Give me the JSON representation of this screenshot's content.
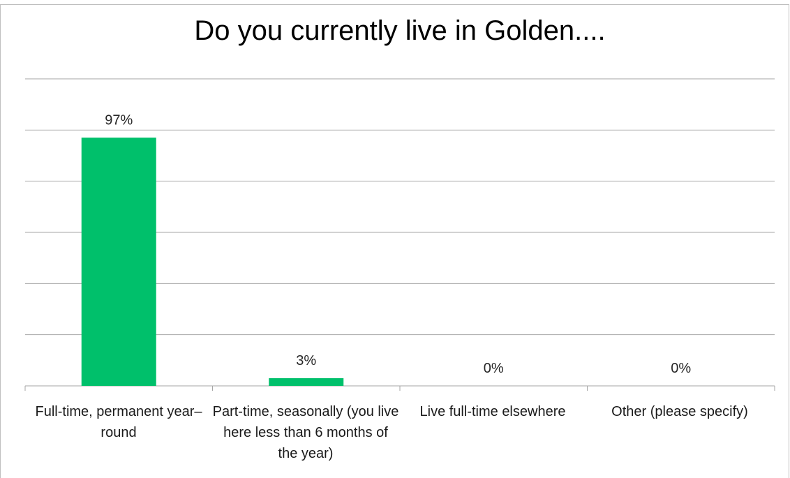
{
  "chart_data": {
    "type": "bar",
    "title": "Do you currently live in Golden....",
    "categories": [
      "Full-time, permanent year–round",
      "Part-time, seasonally (you live here less than 6 months of the year)",
      "Live full-time elsewhere",
      "Other (please specify)"
    ],
    "values": [
      97,
      3,
      0,
      0
    ],
    "data_labels": [
      "97%",
      "3%",
      "0%",
      "0%"
    ],
    "ylim": [
      0,
      120
    ],
    "grid": true,
    "bar_color": "#00c06b",
    "xlabel": "",
    "ylabel": ""
  }
}
